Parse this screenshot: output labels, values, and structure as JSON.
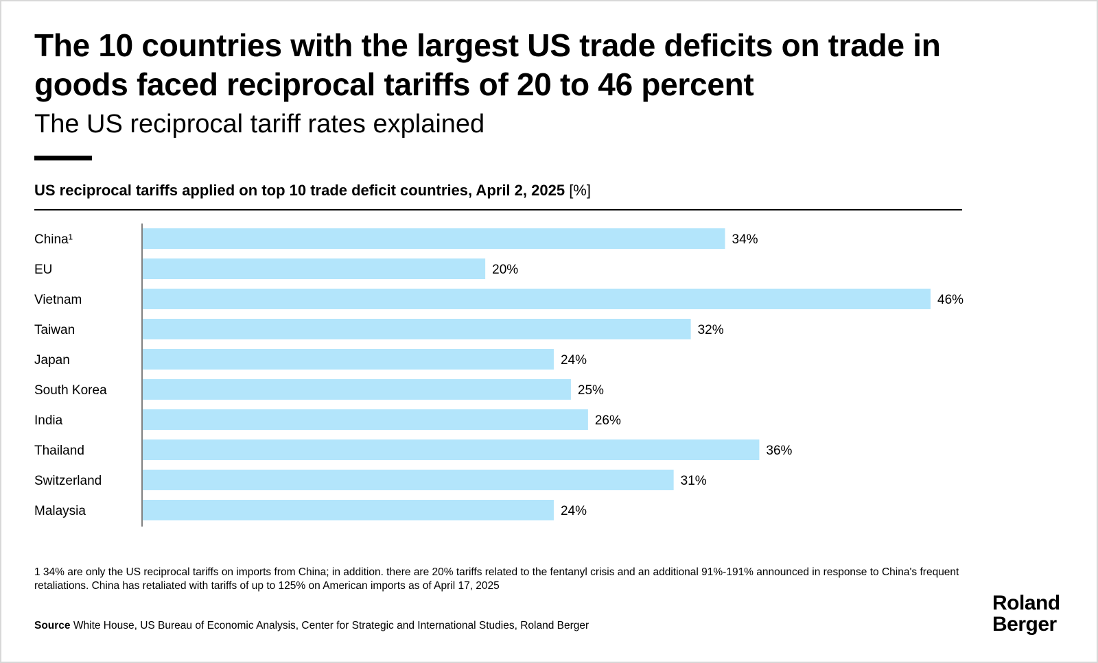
{
  "header": {
    "title": "The 10 countries with the largest US trade deficits on trade in goods faced reciprocal tariffs of 20 to 46 percent",
    "subtitle": "The US reciprocal tariff rates explained"
  },
  "chart_heading": {
    "text": "US reciprocal tariffs applied on top 10 trade deficit countries, April 2, 2025",
    "unit": "[%]"
  },
  "chart_data": {
    "type": "bar",
    "orientation": "horizontal",
    "title": "US reciprocal tariffs applied on top 10 trade deficit countries, April 2, 2025 [%]",
    "categories": [
      "China¹",
      "EU",
      "Vietnam",
      "Taiwan",
      "Japan",
      "South Korea",
      "India",
      "Thailand",
      "Switzerland",
      "Malaysia"
    ],
    "values": [
      34,
      20,
      46,
      32,
      24,
      25,
      26,
      36,
      31,
      24
    ],
    "labels": [
      "34%",
      "20%",
      "46%",
      "32%",
      "24%",
      "25%",
      "26%",
      "36%",
      "31%",
      "24%"
    ],
    "value_unit": "%",
    "xlim": [
      0,
      46
    ],
    "bar_color": "#b3e5fb",
    "grid": false,
    "legend": "none"
  },
  "footnote": "1  34% are only the US reciprocal tariffs on imports from China; in addition. there are 20% tariffs related to the fentanyl crisis and an additional 91%-191% announced in response to China's frequent retaliations. China has retaliated with tariffs of up to 125% on American imports as of April 17, 2025",
  "source": {
    "label": "Source",
    "text": " White House, US Bureau of Economic Analysis, Center for Strategic and International Studies, Roland Berger"
  },
  "logo": {
    "line1": "Roland",
    "line2": "Berger"
  }
}
